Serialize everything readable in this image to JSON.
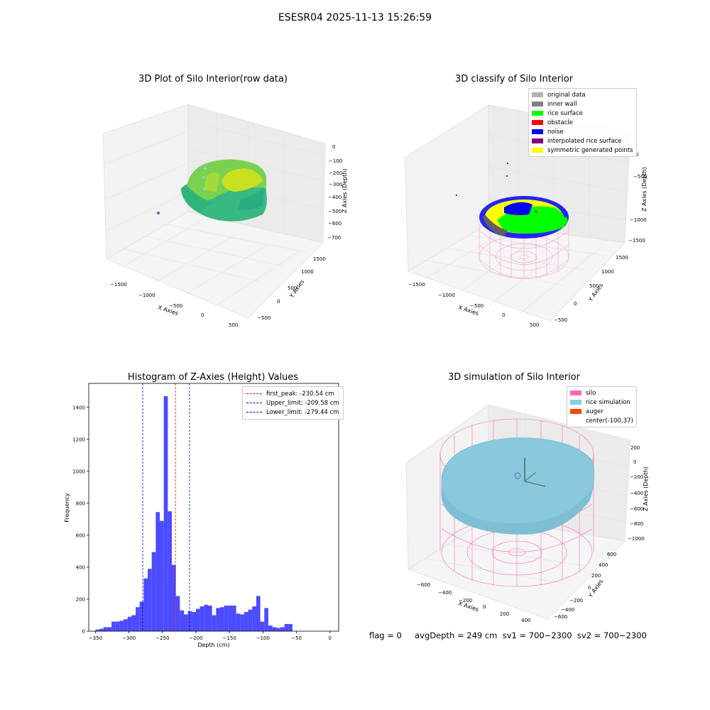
{
  "figure": {
    "suptitle": "ESESR04 2025-11-13 15:26:59",
    "status_line": "flag = 0     avgDepth = 249 cm  sv1 = 700~2300  sv2 = 700~2300"
  },
  "chart_data": [
    {
      "type": "scatter",
      "title": "3D Plot of Silo Interior(row data)",
      "xlabel": "X Axies",
      "ylabel": "Y Axies",
      "zlabel": "Z Axies (Depth)",
      "x_ticks": [
        "−1500",
        "−1000",
        "−500",
        "0",
        "500"
      ],
      "y_ticks": [
        "−500",
        "0",
        "500",
        "1000",
        "1500"
      ],
      "z_ticks": [
        "0",
        "−100",
        "−200",
        "−300",
        "−400",
        "−500",
        "−600",
        "−700"
      ],
      "colormap": [
        "#22a884",
        "#7ad151",
        "#fde725"
      ]
    },
    {
      "type": "scatter",
      "title": "3D classify of Silo Interior",
      "xlabel": "X Axies",
      "ylabel": "Y Axies",
      "zlabel": "Z Axies (Depth)",
      "x_ticks": [
        "−1500",
        "−1000",
        "−500",
        "0",
        "500"
      ],
      "y_ticks": [
        "−500",
        "0",
        "500",
        "1000",
        "1500"
      ],
      "z_ticks": [
        "0",
        "−500",
        "−1000",
        "−1500"
      ],
      "legend_position": "top-right",
      "legend": [
        {
          "label": "original data",
          "color": "#b3b3b3"
        },
        {
          "label": "inner wall",
          "color": "#808080"
        },
        {
          "label": "rice surface",
          "color": "#00ff00"
        },
        {
          "label": "obstacle",
          "color": "#ff0000"
        },
        {
          "label": "noise",
          "color": "#0000ff"
        },
        {
          "label": "interpolated rice surface",
          "color": "#800080"
        },
        {
          "label": "symmetric generated points",
          "color": "#ffff00"
        }
      ],
      "silo_color": "#ff88cc"
    },
    {
      "type": "bar",
      "title": "Histogram of Z-Axies (Height) Values",
      "xlabel": "Depth (cm)",
      "ylabel": "Frequency",
      "xlim": [
        -360,
        13
      ],
      "ylim": [
        0,
        1550
      ],
      "x_ticks": [
        -350,
        -300,
        -250,
        -200,
        -150,
        -100,
        -50,
        0
      ],
      "y_ticks": [
        0,
        200,
        400,
        600,
        800,
        1000,
        1200,
        1400
      ],
      "bar_color": "#4b4bff",
      "bins": {
        "start": -350,
        "width": 6,
        "counts": [
          10,
          15,
          25,
          25,
          60,
          60,
          65,
          75,
          90,
          100,
          150,
          185,
          330,
          390,
          495,
          745,
          690,
          1470,
          750,
          415,
          220,
          130,
          105,
          125,
          120,
          140,
          155,
          165,
          160,
          100,
          145,
          150,
          160,
          160,
          160,
          110,
          105,
          120,
          135,
          155,
          220,
          60,
          145,
          35,
          25,
          20,
          25,
          45,
          45
        ]
      },
      "vlines": [
        {
          "x": -230.54,
          "color": "#ff0000",
          "label": "first_peak: -230.54 cm"
        },
        {
          "x": -209.58,
          "color": "#0000cc",
          "label": "Upper_limit: -209.58 cm"
        },
        {
          "x": -279.44,
          "color": "#0000cc",
          "label": "Lower_limit: -279.44 cm"
        }
      ],
      "legend_position": "top-right"
    },
    {
      "type": "scatter",
      "title": "3D simulation of Silo Interior",
      "xlabel": "X Axies",
      "ylabel": "Y Axies",
      "zlabel": "Z Axies (Depth)",
      "x_ticks": [
        "−600",
        "−400",
        "−200",
        "0",
        "200",
        "400"
      ],
      "y_ticks": [
        "−600",
        "−400",
        "−200",
        "0",
        "200",
        "400",
        "600"
      ],
      "z_ticks": [
        "200",
        "0",
        "−200",
        "−400",
        "−600",
        "−800",
        "−1000"
      ],
      "legend_position": "top-right",
      "legend": [
        {
          "label": "silo",
          "color": "#ff69b4"
        },
        {
          "label": "rice simulation",
          "color": "#87ceeb"
        },
        {
          "label": "auger",
          "color": "#ff4500"
        },
        {
          "label": "center(-100,37)",
          "color": ""
        }
      ]
    }
  ]
}
